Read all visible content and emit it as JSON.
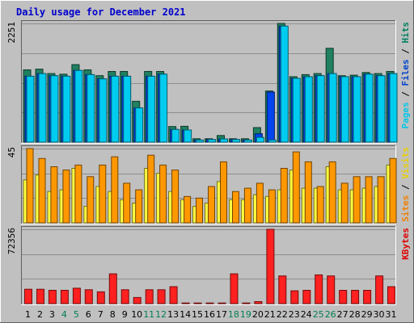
{
  "chart_data": {
    "type": "bar",
    "title": "Daily usage for December 2021",
    "background": "#c0c0c0",
    "x": [
      1,
      2,
      3,
      4,
      5,
      6,
      7,
      8,
      9,
      10,
      11,
      12,
      13,
      14,
      15,
      16,
      17,
      18,
      19,
      20,
      21,
      22,
      23,
      24,
      25,
      26,
      27,
      28,
      29,
      30,
      31
    ],
    "x_tick_colors": [
      "#000000",
      "#000000",
      "#000000",
      "#007f4f",
      "#007f4f",
      "#000000",
      "#000000",
      "#000000",
      "#000000",
      "#000000",
      "#007f4f",
      "#007f4f",
      "#000000",
      "#000000",
      "#000000",
      "#000000",
      "#000000",
      "#007f4f",
      "#007f4f",
      "#000000",
      "#000000",
      "#000000",
      "#000000",
      "#000000",
      "#007f4f",
      "#007f4f",
      "#000000",
      "#000000",
      "#000000",
      "#000000",
      "#000000"
    ],
    "panels": [
      {
        "id": "hits-files-pages",
        "ymax_label": "2251",
        "ymax": 2251,
        "legend": [
          {
            "text": "Pages",
            "color": "#00c8e8"
          },
          {
            "text": " / ",
            "color": "#000000"
          },
          {
            "text": "Files",
            "color": "#0044cc"
          },
          {
            "text": " / ",
            "color": "#000000"
          },
          {
            "text": "Hits",
            "color": "#008060"
          }
        ],
        "series": [
          {
            "name": "Hits",
            "color": "#208060",
            "values": [
              1370,
              1385,
              1300,
              1288,
              1470,
              1370,
              1260,
              1340,
              1340,
              775,
              1340,
              1340,
              295,
              300,
              65,
              65,
              125,
              65,
              65,
              275,
              970,
              2251,
              1240,
              1280,
              1300,
              1780,
              1260,
              1270,
              1320,
              1300,
              1340
            ]
          },
          {
            "name": "Files",
            "color": "#0044ee",
            "values": [
              1250,
              1300,
              1260,
              1250,
              1360,
              1280,
              1200,
              1250,
              1250,
              650,
              1250,
              1290,
              240,
              230,
              40,
              50,
              60,
              50,
              40,
              160,
              950,
              2200,
              1210,
              1240,
              1260,
              1300,
              1240,
              1240,
              1290,
              1260,
              1300
            ]
          },
          {
            "name": "Pages",
            "color": "#00ccf0",
            "values": [
              1250,
              1300,
              1260,
              1250,
              1360,
              1280,
              1200,
              1250,
              1250,
              650,
              1250,
              1290,
              240,
              230,
              40,
              50,
              60,
              50,
              40,
              90,
              40,
              2200,
              1210,
              1240,
              1260,
              1300,
              1240,
              1240,
              1290,
              1260,
              1300
            ]
          }
        ]
      },
      {
        "id": "visits-sites",
        "ymax_label": "45",
        "ymax": 45,
        "legend": [
          {
            "text": "Sites",
            "color": "#f08000"
          },
          {
            "text": " / ",
            "color": "#000000"
          },
          {
            "text": "Visits",
            "color": "#e8d000"
          }
        ],
        "series": [
          {
            "name": "Visits",
            "color": "#ffff40",
            "values": [
              26,
              29,
              19,
              20,
              33,
              10,
              22,
              19,
              14,
              12,
              33,
              30,
              19,
              14,
              10,
              12,
              25,
              14,
              14,
              17,
              16,
              20,
              32,
              21,
              21,
              34,
              20,
              20,
              21,
              22,
              35
            ]
          },
          {
            "name": "Sites",
            "color": "#ff9800",
            "values": [
              45,
              39,
              34,
              32,
              35,
              28,
              35,
              40,
              24,
              20,
              41,
              35,
              32,
              16,
              15,
              22,
              37,
              19,
              21,
              24,
              20,
              33,
              43,
              37,
              22,
              37,
              24,
              28,
              28,
              28,
              39
            ]
          }
        ]
      },
      {
        "id": "kbytes",
        "ymax_label": "72356",
        "ymax": 72356,
        "legend": [
          {
            "text": "KBytes",
            "color": "#e00000"
          }
        ],
        "series": [
          {
            "name": "KBytes",
            "color": "#ff2020",
            "values": [
              14000,
              14000,
              13000,
              13000,
              15000,
              13500,
              11500,
              29000,
              13500,
              6000,
              13500,
              13500,
              16500,
              600,
              600,
              600,
              600,
              29000,
              600,
              2000,
              72356,
              27000,
              12500,
              13000,
              28000,
              27000,
              13000,
              13000,
              13000,
              27000,
              16500
            ]
          }
        ]
      }
    ]
  }
}
